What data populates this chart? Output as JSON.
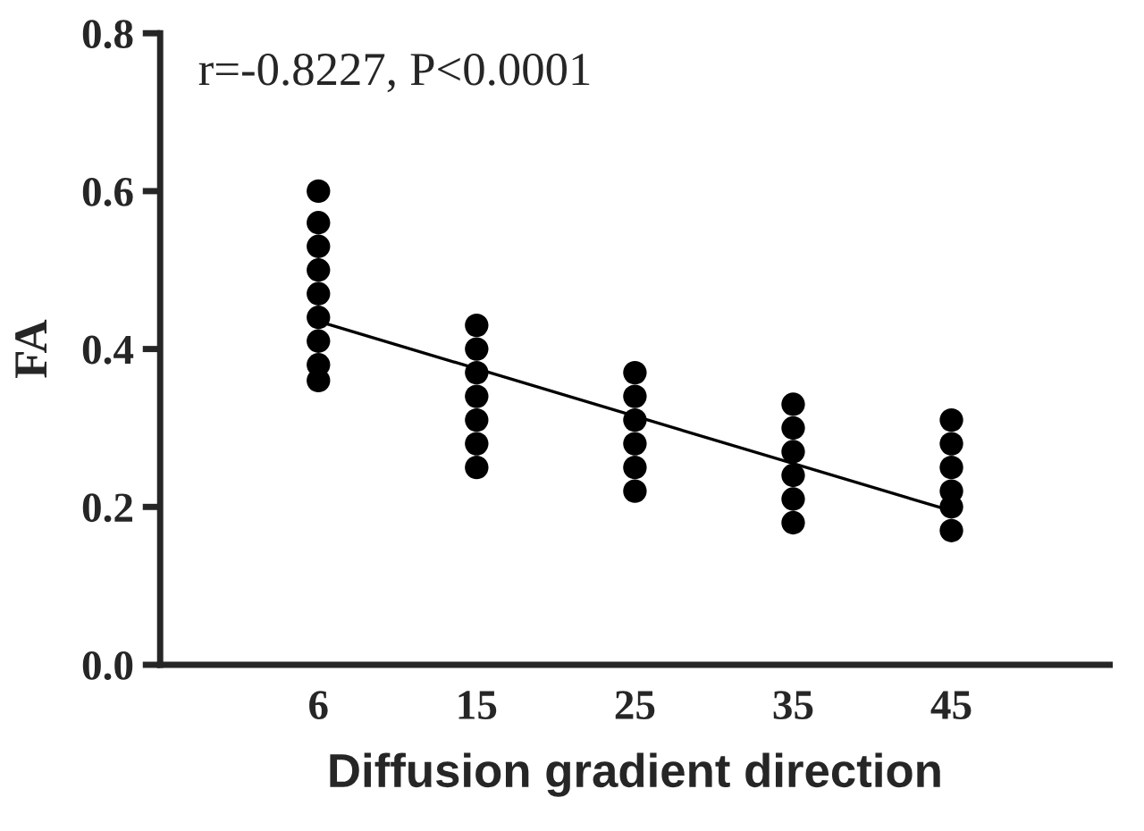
{
  "chart_data": {
    "type": "scatter",
    "xlabel": "Diffusion gradient direction",
    "ylabel": "FA",
    "annotations": [
      "r=-0.8227, P<0.0001"
    ],
    "categories": [
      "6",
      "15",
      "25",
      "35",
      "45"
    ],
    "ylim": [
      0,
      0.8
    ],
    "yticks": [
      {
        "value": 0,
        "label": "0.0"
      },
      {
        "value": 0.2,
        "label": "0.2"
      },
      {
        "value": 0.4,
        "label": "0.4"
      },
      {
        "value": 0.6,
        "label": "0.6"
      },
      {
        "value": 0.8,
        "label": "0.8"
      }
    ],
    "grid": false,
    "marker": "circle",
    "series": [
      {
        "color": "#000000",
        "x": [
          "6",
          "6",
          "6",
          "6",
          "6",
          "6",
          "6",
          "6",
          "6"
        ],
        "values": [
          0.36,
          0.38,
          0.41,
          0.44,
          0.47,
          0.5,
          0.53,
          0.56,
          0.6
        ]
      },
      {
        "color": "#000000",
        "x": [
          "15",
          "15",
          "15",
          "15",
          "15",
          "15",
          "15"
        ],
        "values": [
          0.25,
          0.28,
          0.31,
          0.34,
          0.37,
          0.4,
          0.43
        ]
      },
      {
        "color": "#000000",
        "x": [
          "25",
          "25",
          "25",
          "25",
          "25",
          "25"
        ],
        "values": [
          0.22,
          0.25,
          0.28,
          0.31,
          0.34,
          0.37
        ]
      },
      {
        "color": "#000000",
        "x": [
          "35",
          "35",
          "35",
          "35",
          "35",
          "35"
        ],
        "values": [
          0.18,
          0.21,
          0.24,
          0.27,
          0.3,
          0.33
        ]
      },
      {
        "color": "#000000",
        "x": [
          "45",
          "45",
          "45",
          "45",
          "45",
          "45"
        ],
        "values": [
          0.17,
          0.2,
          0.22,
          0.25,
          0.28,
          0.31
        ]
      },
      {
        "type": "line",
        "color": "#000000",
        "x": [
          "6",
          "45"
        ],
        "values": [
          0.435,
          0.195
        ],
        "marker": "none",
        "line_style": "solid"
      }
    ]
  }
}
